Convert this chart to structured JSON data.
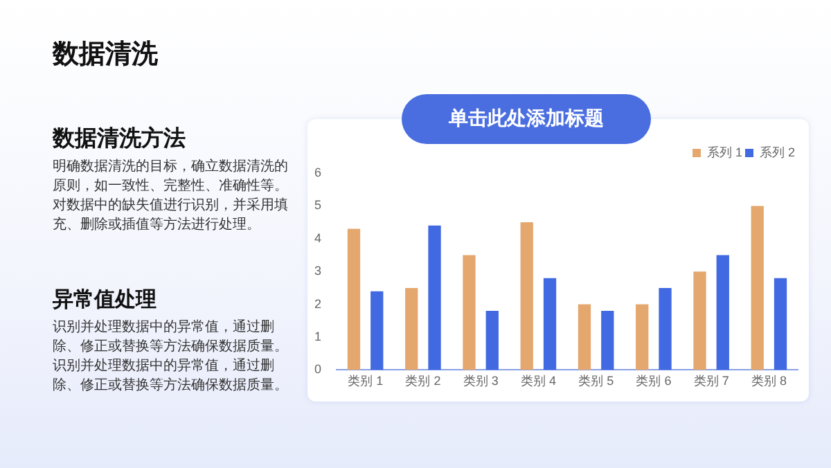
{
  "chart_data": {
    "type": "bar",
    "title": "单击此处添加标题",
    "annotations": [
      "数据清洗",
      "数据清洗方法",
      "明确数据清洗的目标，确立数据清洗的原则，如一致性、完整性、准确性等。对数据中的缺失值进行识别，并采用填充、删除或插值等方法进行处理。",
      "异常值处理",
      "识别并处理数据中的异常值，通过删除、修正或替换等方法确保数据质量。识别并处理数据中的异常值，通过删除、修正或替换等方法确保数据质量。"
    ],
    "categories": [
      "类别 1",
      "类别 2",
      "类别 3",
      "类别 4",
      "类别 5",
      "类别 6",
      "类别 7",
      "类别 8"
    ],
    "series": [
      {
        "name": "系列 1",
        "color": "#e4a86f",
        "values": [
          4.3,
          2.5,
          3.5,
          4.5,
          2,
          2,
          3,
          5
        ]
      },
      {
        "name": "系列 2",
        "color": "#4169e1",
        "values": [
          2.4,
          4.4,
          1.8,
          2.8,
          1.8,
          2.5,
          3.5,
          2.8
        ]
      }
    ],
    "ylim": [
      0,
      6
    ],
    "yticks": [
      0,
      1,
      2,
      3,
      4,
      5,
      6
    ],
    "grid": false,
    "legend": "top right"
  }
}
